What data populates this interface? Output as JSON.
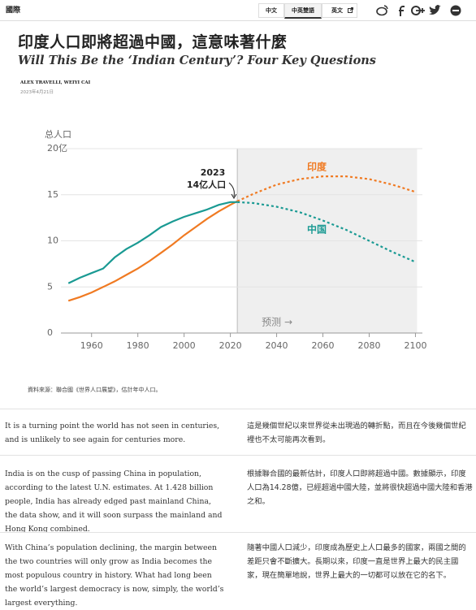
{
  "header": {
    "section": "國際",
    "languages": [
      "中文",
      "中英雙語",
      "英文"
    ]
  },
  "article": {
    "title": "印度人口即將超過中國，這意味著什麼",
    "subtitle": "Will This Be the ‘Indian Century’? Four Key Questions",
    "byline": "ALEX TRAVELLI, WEIYI CAI",
    "date": "2023年4月21日"
  },
  "chart_data": {
    "type": "line",
    "y_label": "总人口",
    "x": [
      1950,
      1955,
      1960,
      1965,
      1970,
      1975,
      1980,
      1985,
      1990,
      1995,
      2000,
      2005,
      2010,
      2015,
      2020,
      2023,
      2030,
      2040,
      2050,
      2060,
      2070,
      2080,
      2090,
      2100
    ],
    "series": [
      {
        "name": "印度",
        "color": "#f07a22",
        "values": [
          3.5,
          3.9,
          4.4,
          5.0,
          5.6,
          6.3,
          7.0,
          7.8,
          8.7,
          9.6,
          10.6,
          11.5,
          12.4,
          13.2,
          13.9,
          14.3,
          15.1,
          16.1,
          16.7,
          17.0,
          17.0,
          16.7,
          16.1,
          15.3
        ]
      },
      {
        "name": "中国",
        "color": "#1a9a93",
        "values": [
          5.4,
          6.0,
          6.5,
          7.0,
          8.2,
          9.1,
          9.8,
          10.6,
          11.5,
          12.1,
          12.6,
          13.0,
          13.4,
          13.9,
          14.2,
          14.2,
          14.1,
          13.7,
          13.1,
          12.2,
          11.2,
          10.0,
          8.8,
          7.7
        ]
      }
    ],
    "forecast_from": 2023,
    "forecast_label": "预测 →",
    "annotation": [
      "2023",
      "14亿人口"
    ],
    "xlim": [
      1945,
      2103
    ],
    "xticks": [
      1960,
      1980,
      2000,
      2020,
      2040,
      2060,
      2080,
      2100
    ],
    "ylim": [
      0,
      20
    ],
    "yticks": [
      0,
      5,
      10,
      15,
      {
        "value": 20,
        "label": "20亿"
      }
    ],
    "grid": true,
    "source": "資料來源：聯合國《世界人口展望》，估計年中人口。"
  },
  "paragraphs": [
    {
      "en": "It is a turning point the world has not seen in centuries, and is unlikely to see again for centuries more.",
      "zh": "這是幾個世紀以來世界從未出現過的轉折點，而且在今後幾個世紀裡也不太可能再次看到。"
    },
    {
      "en": "India is on the cusp of passing China in population, according to the latest U.N. estimates. At 1.428 billion people, India has already edged past mainland China, the data show, and it will soon surpass the mainland and Hong Kong combined.",
      "zh": "根據聯合國的最新估計，印度人口即將超過中國。數據顯示，印度人口為14.28億，已經超過中國大陸，並將很快超過中國大陸和香港之和。"
    },
    {
      "en": "With China’s population declining, the margin between the two countries will only grow as India becomes the most populous country in history. What had long been the world’s largest democracy is now, simply, the world’s largest everything.",
      "zh": "隨著中國人口減少，印度成為歷史上人口最多的國家，兩國之間的差距只會不斷擴大。長期以來，印度一直是世界上最大的民主國家，現在簡單地說，世界上最大的一切都可以放在它的名下。"
    }
  ]
}
